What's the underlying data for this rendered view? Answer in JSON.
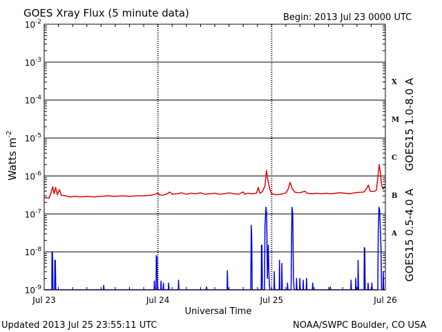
{
  "header": {
    "title": "GOES Xray Flux (5 minute data)",
    "begin": "Begin:  2013 Jul 23 0000 UTC"
  },
  "footer": {
    "updated": "Updated 2013 Jul 25 23:55:11 UTC",
    "credit": "NOAA/SWPC Boulder, CO USA"
  },
  "chart_data": {
    "type": "line",
    "title": "GOES Xray Flux (5 minute data)",
    "xlabel": "Universal Time",
    "ylabel_base": "Watts m",
    "ylabel_exp": "-2",
    "y_scale": "log",
    "ylim_exponents": [
      -9,
      -2
    ],
    "y_tick_exponents": [
      -2,
      -3,
      -4,
      -5,
      -6,
      -7,
      -8,
      -9
    ],
    "x_unit": "hours since 2013 Jul 23 0000 UTC",
    "xlim": [
      0,
      72
    ],
    "x_ticks": [
      {
        "x": 0,
        "label": "Jul 23"
      },
      {
        "x": 24,
        "label": "Jul 24"
      },
      {
        "x": 48,
        "label": "Jul 25"
      },
      {
        "x": 72,
        "label": "Jul 26"
      }
    ],
    "flare_classes": [
      {
        "label": "X",
        "exp": -4
      },
      {
        "label": "M",
        "exp": -5
      },
      {
        "label": "C",
        "exp": -6
      },
      {
        "label": "B",
        "exp": -7
      },
      {
        "label": "A",
        "exp": -8
      }
    ],
    "grid": "horizontal at decades, dotted at day boundaries",
    "series": [
      {
        "name": "GOES15 1.0-8.0 A",
        "color": "#e00000",
        "points": [
          [
            0,
            2.7e-07
          ],
          [
            1,
            2.6e-07
          ],
          [
            1.5,
            3.8e-07
          ],
          [
            1.8,
            5.2e-07
          ],
          [
            2.1,
            3.4e-07
          ],
          [
            2.4,
            5e-07
          ],
          [
            2.8,
            3.2e-07
          ],
          [
            3.2,
            4.4e-07
          ],
          [
            3.6,
            3.1e-07
          ],
          [
            4.5,
            3e-07
          ],
          [
            5.5,
            2.8e-07
          ],
          [
            6.5,
            2.9e-07
          ],
          [
            7.5,
            2.8e-07
          ],
          [
            9,
            2.9e-07
          ],
          [
            10.5,
            2.8e-07
          ],
          [
            12,
            2.9e-07
          ],
          [
            13.5,
            3e-07
          ],
          [
            15,
            2.9e-07
          ],
          [
            16.5,
            3e-07
          ],
          [
            18,
            2.9e-07
          ],
          [
            19.5,
            3e-07
          ],
          [
            21,
            3e-07
          ],
          [
            22.5,
            3.1e-07
          ],
          [
            23.5,
            3.3e-07
          ],
          [
            24,
            3.6e-07
          ],
          [
            24.3,
            3.2e-07
          ],
          [
            25,
            3.1e-07
          ],
          [
            26,
            3.4e-07
          ],
          [
            26.5,
            3.8e-07
          ],
          [
            27,
            3.3e-07
          ],
          [
            28,
            3.4e-07
          ],
          [
            29,
            3.6e-07
          ],
          [
            30,
            3.3e-07
          ],
          [
            31,
            3.5e-07
          ],
          [
            32,
            3.4e-07
          ],
          [
            33,
            3.6e-07
          ],
          [
            34,
            3.3e-07
          ],
          [
            35,
            3.4e-07
          ],
          [
            36,
            3.5e-07
          ],
          [
            37,
            3.3e-07
          ],
          [
            38,
            3.4e-07
          ],
          [
            39,
            3.6e-07
          ],
          [
            40,
            3.4e-07
          ],
          [
            41,
            3.3e-07
          ],
          [
            42,
            3.8e-07
          ],
          [
            42.3,
            3.3e-07
          ],
          [
            43,
            3.5e-07
          ],
          [
            44,
            3.4e-07
          ],
          [
            44.8,
            3.5e-07
          ],
          [
            45.2,
            5e-07
          ],
          [
            45.5,
            3.5e-07
          ],
          [
            46,
            3.8e-07
          ],
          [
            46.6,
            5.5e-07
          ],
          [
            46.9,
            1.4e-06
          ],
          [
            47.2,
            8e-07
          ],
          [
            47.6,
            4.5e-07
          ],
          [
            48,
            3.4e-07
          ],
          [
            49,
            3.2e-07
          ],
          [
            50,
            3.3e-07
          ],
          [
            51,
            3.6e-07
          ],
          [
            51.5,
            4.5e-07
          ],
          [
            51.9,
            6.8e-07
          ],
          [
            52.3,
            4.8e-07
          ],
          [
            52.8,
            3.8e-07
          ],
          [
            53.5,
            3.6e-07
          ],
          [
            54.3,
            3.7e-07
          ],
          [
            55,
            4e-07
          ],
          [
            55.5,
            3.5e-07
          ],
          [
            56.5,
            3.4e-07
          ],
          [
            57.5,
            3.5e-07
          ],
          [
            58.5,
            3.4e-07
          ],
          [
            59.5,
            3.5e-07
          ],
          [
            60.5,
            3.4e-07
          ],
          [
            61.5,
            3.5e-07
          ],
          [
            62.5,
            3.6e-07
          ],
          [
            63.5,
            3.5e-07
          ],
          [
            64.5,
            3.4e-07
          ],
          [
            65.5,
            3.6e-07
          ],
          [
            66.5,
            3.7e-07
          ],
          [
            67.5,
            3.8e-07
          ],
          [
            68,
            4.6e-07
          ],
          [
            68.4,
            5.8e-07
          ],
          [
            68.8,
            4e-07
          ],
          [
            69.5,
            3.9e-07
          ],
          [
            70.1,
            4.2e-07
          ],
          [
            70.4,
            9e-07
          ],
          [
            70.7,
            2e-06
          ],
          [
            70.95,
            1.2e-06
          ],
          [
            71.2,
            5.8e-07
          ],
          [
            71.5,
            4.5e-07
          ],
          [
            71.8,
            5.2e-07
          ],
          [
            72,
            4.8e-07
          ]
        ]
      },
      {
        "name": "GOES15 0.5-4.0 A",
        "color": "#0000e0",
        "points": [
          [
            0,
            1e-09
          ],
          [
            1.6,
            1e-09
          ],
          [
            1.65,
            1e-08
          ],
          [
            1.75,
            1e-08
          ],
          [
            1.85,
            1e-09
          ],
          [
            2.2,
            1e-09
          ],
          [
            2.25,
            6e-09
          ],
          [
            2.35,
            6e-09
          ],
          [
            2.45,
            1e-09
          ],
          [
            12.5,
            1e-09
          ],
          [
            12.55,
            1.3e-09
          ],
          [
            12.65,
            1e-09
          ],
          [
            23.2,
            1e-09
          ],
          [
            23.25,
            1.7e-09
          ],
          [
            23.35,
            1e-09
          ],
          [
            23.6,
            1e-09
          ],
          [
            23.65,
            8e-09
          ],
          [
            23.8,
            7e-09
          ],
          [
            23.9,
            1e-09
          ],
          [
            24.6,
            1e-09
          ],
          [
            24.65,
            1.7e-09
          ],
          [
            24.75,
            1e-09
          ],
          [
            25.1,
            1e-09
          ],
          [
            25.15,
            1.5e-09
          ],
          [
            25.25,
            1e-09
          ],
          [
            26.2,
            1e-09
          ],
          [
            26.25,
            1.5e-09
          ],
          [
            26.35,
            1e-09
          ],
          [
            28.3,
            1e-09
          ],
          [
            28.35,
            1.8e-09
          ],
          [
            28.45,
            1e-09
          ],
          [
            34.2,
            1e-09
          ],
          [
            34.25,
            1.2e-09
          ],
          [
            34.35,
            1e-09
          ],
          [
            38.6,
            1e-09
          ],
          [
            38.65,
            3.2e-09
          ],
          [
            38.75,
            1e-09
          ],
          [
            43.6,
            1e-09
          ],
          [
            43.7,
            5e-08
          ],
          [
            43.8,
            2.5e-08
          ],
          [
            43.9,
            1e-09
          ],
          [
            45.8,
            1e-09
          ],
          [
            45.85,
            1.5e-08
          ],
          [
            45.95,
            1.5e-08
          ],
          [
            46.05,
            1e-09
          ],
          [
            46.5,
            1e-09
          ],
          [
            46.6,
            5e-08
          ],
          [
            46.8,
            1.5e-07
          ],
          [
            46.95,
            1e-07
          ],
          [
            47.1,
            2e-09
          ],
          [
            47.3,
            1.5e-08
          ],
          [
            47.45,
            2e-09
          ],
          [
            47.6,
            1e-09
          ],
          [
            48.5,
            1e-09
          ],
          [
            48.55,
            3e-09
          ],
          [
            48.65,
            1e-09
          ],
          [
            49.6,
            1e-09
          ],
          [
            49.65,
            6e-09
          ],
          [
            49.75,
            1e-09
          ],
          [
            50.1,
            1e-09
          ],
          [
            50.15,
            5e-09
          ],
          [
            50.25,
            1e-09
          ],
          [
            51.3,
            1e-09
          ],
          [
            51.35,
            1.5e-09
          ],
          [
            51.45,
            1e-09
          ],
          [
            52.1,
            1e-09
          ],
          [
            52.2,
            2e-08
          ],
          [
            52.3,
            1.5e-07
          ],
          [
            52.45,
            1e-07
          ],
          [
            52.6,
            2e-09
          ],
          [
            52.75,
            1e-09
          ],
          [
            53.2,
            1e-09
          ],
          [
            53.25,
            2e-09
          ],
          [
            53.35,
            1e-09
          ],
          [
            53.9,
            1e-09
          ],
          [
            53.95,
            2e-09
          ],
          [
            54.05,
            1e-09
          ],
          [
            54.6,
            1e-09
          ],
          [
            54.65,
            1.8e-09
          ],
          [
            54.75,
            1e-09
          ],
          [
            55.3,
            1e-09
          ],
          [
            55.35,
            2e-09
          ],
          [
            55.45,
            1e-09
          ],
          [
            56.6,
            1e-09
          ],
          [
            56.65,
            1.5e-09
          ],
          [
            56.75,
            1e-09
          ],
          [
            60.3,
            1e-09
          ],
          [
            60.35,
            1.2e-09
          ],
          [
            60.45,
            1e-09
          ],
          [
            64.7,
            1e-09
          ],
          [
            64.75,
            1.8e-09
          ],
          [
            64.85,
            1e-09
          ],
          [
            65.7,
            1e-09
          ],
          [
            65.75,
            2e-09
          ],
          [
            65.85,
            1e-09
          ],
          [
            66.2,
            1e-09
          ],
          [
            66.25,
            6e-09
          ],
          [
            66.35,
            1e-09
          ],
          [
            67.5,
            1e-09
          ],
          [
            67.55,
            1.3e-08
          ],
          [
            67.65,
            1.2e-08
          ],
          [
            67.75,
            1e-09
          ],
          [
            68.3,
            1e-09
          ],
          [
            68.35,
            1.5e-09
          ],
          [
            68.45,
            1e-09
          ],
          [
            69.1,
            1e-09
          ],
          [
            69.15,
            1.5e-09
          ],
          [
            69.25,
            1e-09
          ],
          [
            70.4,
            1e-09
          ],
          [
            70.5,
            3e-08
          ],
          [
            70.65,
            1.5e-07
          ],
          [
            70.8,
            1.2e-07
          ],
          [
            70.95,
            4e-08
          ],
          [
            71.1,
            1e-08
          ],
          [
            71.2,
            1e-09
          ],
          [
            71.5,
            1e-09
          ],
          [
            71.55,
            3e-09
          ],
          [
            71.65,
            1e-09
          ],
          [
            72,
            1e-09
          ]
        ]
      }
    ]
  }
}
